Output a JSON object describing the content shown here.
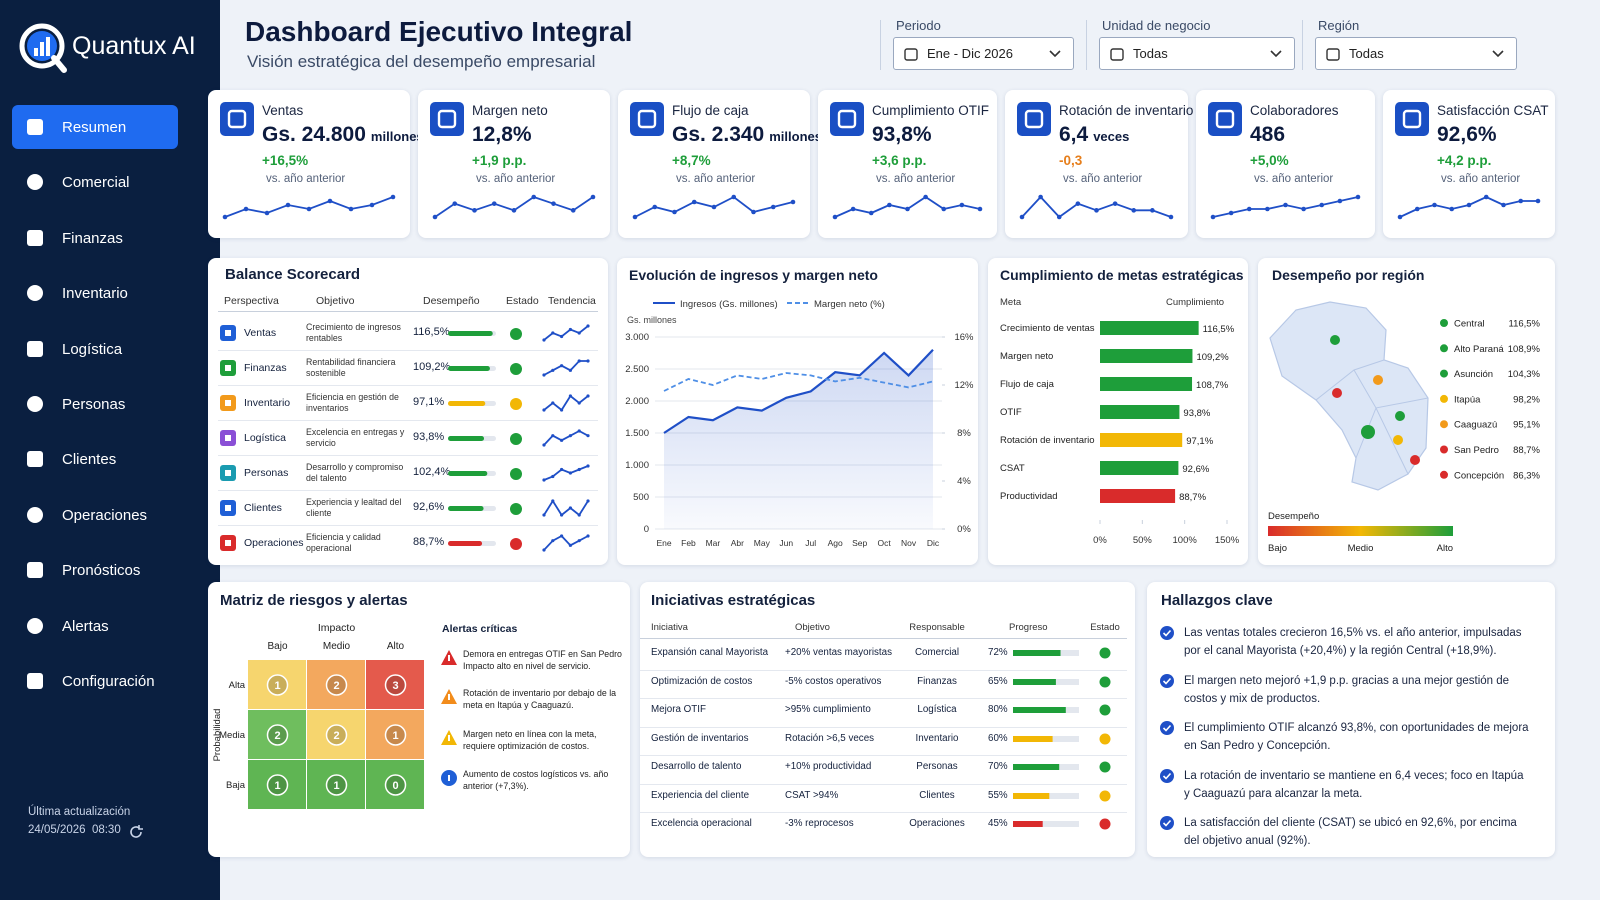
{
  "sidebar": {
    "brand": "Quantux AI",
    "menu": [
      "Resumen",
      "Comercial",
      "Finanzas",
      "Inventario",
      "Logística",
      "Personas",
      "Clientes",
      "Operaciones",
      "Pronósticos",
      "Alertas",
      "Configuración"
    ],
    "last_update_label": "Última actualización",
    "last_update": "24/05/2026  08:30"
  },
  "header": {
    "title": "Dashboard Ejecutivo Integral",
    "subtitle": "Visión estratégica del desempeño empresarial",
    "filters": [
      {
        "label": "Periodo",
        "value": "Ene - Dic 2026"
      },
      {
        "label": "Unidad de negocio",
        "value": "Todas"
      },
      {
        "label": "Región",
        "value": "Todas"
      }
    ]
  },
  "kpis": [
    {
      "name": "Ventas",
      "value": "Gs. 24.800",
      "unit": "millones",
      "change": "+16,5%",
      "change_color": "#1e9e3a",
      "note": "vs. año anterior",
      "spark": [
        2,
        4,
        3,
        5,
        4,
        6,
        4,
        5,
        7
      ]
    },
    {
      "name": "Margen neto",
      "value": "12,8%",
      "change": "+1,9 p.p.",
      "change_color": "#1e9e3a",
      "note": "vs. año anterior",
      "spark": [
        2,
        4,
        3,
        4,
        3,
        5,
        4,
        3,
        5
      ]
    },
    {
      "name": "Flujo de caja",
      "value": "Gs. 2.340",
      "unit": "millones",
      "change": "+8,7%",
      "change_color": "#1e9e3a",
      "note": "vs. año anterior",
      "spark": [
        2,
        4,
        3,
        5,
        4,
        6,
        3,
        4,
        5
      ]
    },
    {
      "name": "Cumplimiento OTIF",
      "value": "93,8%",
      "change": "+3,6 p.p.",
      "change_color": "#1e9e3a",
      "note": "vs. año anterior",
      "spark": [
        1,
        3,
        2,
        4,
        3,
        6,
        3,
        4,
        3
      ]
    },
    {
      "name": "Rotación de inventario",
      "value": "6,4",
      "unit": "veces",
      "change": "-0,3",
      "change_color": "#e67e1b",
      "note": "vs. año anterior",
      "spark": [
        3,
        6,
        3,
        5,
        4,
        5,
        4,
        4,
        3
      ]
    },
    {
      "name": "Colaboradores",
      "value": "486",
      "change": "+5,0%",
      "change_color": "#1e9e3a",
      "note": "vs. año anterior",
      "spark": [
        1,
        2,
        3,
        3,
        4,
        3,
        4,
        5,
        6
      ]
    },
    {
      "name": "Satisfacción CSAT",
      "value": "92,6%",
      "change": "+4,2 p.p.",
      "change_color": "#1e9e3a",
      "note": "vs. año anterior",
      "spark": [
        1,
        3,
        4,
        3,
        4,
        6,
        4,
        5,
        5
      ]
    }
  ],
  "scorecard": {
    "title": "Balance Scorecard",
    "columns": [
      "Perspectiva",
      "Objetivo",
      "Desempeño",
      "Estado",
      "Tendencia"
    ],
    "xlim": [
      0,
      125
    ],
    "rows": [
      {
        "perspective": "Ventas",
        "objective": "Crecimiento de ingresos rentables",
        "value": 116.5,
        "value_label": "116,5%",
        "icon_color": "#1f5fd6",
        "status_color": "#1e9e3a",
        "trend": [
          2,
          4,
          3,
          5,
          4,
          6
        ]
      },
      {
        "perspective": "Finanzas",
        "objective": "Rentabilidad financiera sostenible",
        "value": 109.2,
        "value_label": "109,2%",
        "icon_color": "#1e9e3a",
        "status_color": "#1e9e3a",
        "trend": [
          2,
          3,
          4,
          3,
          5,
          5
        ]
      },
      {
        "perspective": "Inventario",
        "objective": "Eficiencia en gestión de inventarios",
        "value": 97.1,
        "value_label": "97,1%",
        "icon_color": "#f29a1b",
        "status_color": "#f2b705",
        "trend": [
          3,
          4,
          3,
          5,
          4,
          5
        ]
      },
      {
        "perspective": "Logística",
        "objective": "Excelencia en entregas y servicio",
        "value": 93.8,
        "value_label": "93,8%",
        "icon_color": "#8a4fd6",
        "status_color": "#1e9e3a",
        "trend": [
          2,
          4,
          3,
          4,
          5,
          4
        ]
      },
      {
        "perspective": "Personas",
        "objective": "Desarrollo y compromiso del talento",
        "value": 102.4,
        "value_label": "102,4%",
        "icon_color": "#1a9bb0",
        "status_color": "#1e9e3a",
        "trend": [
          2,
          3,
          5,
          4,
          5,
          6
        ]
      },
      {
        "perspective": "Clientes",
        "objective": "Experiencia y lealtad del cliente",
        "value": 92.6,
        "value_label": "92,6%",
        "icon_color": "#1f5fd6",
        "status_color": "#1e9e3a",
        "trend": [
          3,
          5,
          3,
          4,
          3,
          5
        ]
      },
      {
        "perspective": "Operaciones",
        "objective": "Eficiencia y calidad operacional",
        "value": 88.7,
        "value_label": "88,7%",
        "icon_color": "#d92b2b",
        "status_color": "#d92b2b",
        "trend": [
          2,
          4,
          5,
          3,
          4,
          5
        ]
      }
    ]
  },
  "chart_data": [
    {
      "type": "line",
      "title": "Evolución de ingresos y margen neto",
      "y_label": "Gs. millones",
      "categories": [
        "Ene",
        "Feb",
        "Mar",
        "Abr",
        "May",
        "Jun",
        "Jul",
        "Ago",
        "Sep",
        "Oct",
        "Nov",
        "Dic"
      ],
      "series": [
        {
          "name": "Ingresos (Gs. millones)",
          "color": "#1f4fc7",
          "area": true,
          "values": [
            1500,
            1750,
            1700,
            1900,
            1850,
            2050,
            2150,
            2450,
            2400,
            2750,
            2400,
            2800
          ]
        },
        {
          "name": "Margen neto (%)",
          "color": "#4f8fe6",
          "dash": true,
          "axis": "y2",
          "values": [
            11.5,
            12.5,
            12,
            12.8,
            12.5,
            13,
            12.8,
            12.3,
            12.6,
            12.2,
            11.8,
            12.3
          ]
        }
      ],
      "ylim": [
        0,
        3000
      ],
      "yticks": [
        0,
        500,
        {
          "value": 1000,
          "label": "1.000"
        },
        {
          "value": 1500,
          "label": "1.500"
        },
        {
          "value": 2000,
          "label": "2.000"
        },
        {
          "value": 2500,
          "label": "2.500"
        },
        {
          "value": 3000,
          "label": "3.000"
        }
      ],
      "y2lim": [
        0,
        16
      ],
      "y2ticks": [
        {
          "value": 0,
          "label": "0%"
        },
        {
          "value": 4,
          "label": "4%"
        },
        {
          "value": 8,
          "label": "8%"
        },
        {
          "value": 12,
          "label": "12%"
        },
        {
          "value": 16,
          "label": "16%"
        }
      ],
      "grid": true
    },
    {
      "type": "hbar",
      "title": "Cumplimiento de metas estratégicas",
      "headers": [
        "Meta",
        "Cumplimiento"
      ],
      "categories": [
        "Crecimiento de ventas",
        "Margen neto",
        "Flujo de caja",
        "OTIF",
        "Rotación de inventario",
        "CSAT",
        "Productividad"
      ],
      "values": [
        116.5,
        109.2,
        108.7,
        93.8,
        97.1,
        92.6,
        88.7
      ],
      "value_labels": [
        "116,5%",
        "109,2%",
        "108,7%",
        "93,8%",
        "97,1%",
        "92,6%",
        "88,7%"
      ],
      "colors": [
        "#1e9e3a",
        "#1e9e3a",
        "#1e9e3a",
        "#1e9e3a",
        "#f2b705",
        "#1e9e3a",
        "#d92b2b"
      ],
      "xlim": [
        0,
        150
      ],
      "xticks": [
        {
          "value": 0,
          "label": "0%"
        },
        {
          "value": 50,
          "label": "50%"
        },
        {
          "value": 100,
          "label": "100%"
        },
        {
          "value": 150,
          "label": "150%"
        }
      ]
    },
    {
      "type": "map",
      "title": "Desempeño por región",
      "categories": [
        "Central",
        "Alto Paraná",
        "Asunción",
        "Itapúa",
        "Caaguazú",
        "San Pedro",
        "Concepción"
      ],
      "values": [
        116.5,
        108.9,
        104.3,
        98.2,
        95.1,
        88.7,
        86.3
      ],
      "value_labels": [
        "116,5%",
        "108,9%",
        "104,3%",
        "98,2%",
        "95,1%",
        "88,7%",
        "86,3%"
      ],
      "colors": [
        "#1e9e3a",
        "#1e9e3a",
        "#1e9e3a",
        "#f2b705",
        "#f29a1b",
        "#d92b2b",
        "#d92b2b"
      ],
      "scale_title": "Desempeño",
      "scale_labels": [
        "Bajo",
        "Medio",
        "Alto"
      ],
      "scale_colors": [
        "#d92b2b",
        "#f2b705",
        "#1e9e3a"
      ]
    }
  ],
  "risk": {
    "title": "Matriz de riesgos y alertas",
    "x_title": "Impacto",
    "y_title": "Probabilidad",
    "columns": [
      "Bajo",
      "Medio",
      "Alto"
    ],
    "rows": [
      "Alta",
      "Media",
      "Baja"
    ],
    "counts": [
      [
        1,
        2,
        3
      ],
      [
        2,
        2,
        1
      ],
      [
        1,
        1,
        0
      ]
    ],
    "cell_colors": [
      [
        "#f6d56e",
        "#f3a85e",
        "#e45a4c"
      ],
      [
        "#6fbe5e",
        "#f6d56e",
        "#f3a85e"
      ],
      [
        "#5fb553",
        "#5fb553",
        "#5fb553"
      ]
    ],
    "alerts_title": "Alertas críticas",
    "alerts": [
      {
        "text": "Demora en entregas OTIF en San Pedro Impacto alto en nivel de servicio.",
        "icon_color": "#d92b2b"
      },
      {
        "text": "Rotación de inventario por debajo de la meta en Itapúa y Caaguazú.",
        "icon_color": "#f28c1b"
      },
      {
        "text": "Margen neto en línea con la meta, requiere optimización de costos.",
        "icon_color": "#f2b705"
      },
      {
        "text": "Aumento de costos logísticos vs. año anterior (+7,3%).",
        "icon_color": "#1f5fd6"
      }
    ]
  },
  "initiatives": {
    "title": "Iniciativas estratégicas",
    "columns": [
      "Iniciativa",
      "Objetivo",
      "Responsable",
      "Progreso",
      "Estado"
    ],
    "xlim": [
      0,
      100
    ],
    "rows": [
      {
        "name": "Expansión canal Mayorista",
        "objective": "+20% ventas mayoristas",
        "owner": "Comercial",
        "progress": 72,
        "progress_label": "72%",
        "color": "#1e9e3a"
      },
      {
        "name": "Optimización de costos",
        "objective": "-5% costos operativos",
        "owner": "Finanzas",
        "progress": 65,
        "progress_label": "65%",
        "color": "#1e9e3a"
      },
      {
        "name": "Mejora OTIF",
        "objective": ">95% cumplimiento",
        "owner": "Logística",
        "progress": 80,
        "progress_label": "80%",
        "color": "#1e9e3a"
      },
      {
        "name": "Gestión de inventarios",
        "objective": "Rotación >6,5 veces",
        "owner": "Inventario",
        "progress": 60,
        "progress_label": "60%",
        "color": "#f2b705"
      },
      {
        "name": "Desarrollo de talento",
        "objective": "+10% productividad",
        "owner": "Personas",
        "progress": 70,
        "progress_label": "70%",
        "color": "#1e9e3a"
      },
      {
        "name": "Experiencia del cliente",
        "objective": "CSAT >94%",
        "owner": "Clientes",
        "progress": 55,
        "progress_label": "55%",
        "color": "#f2b705"
      },
      {
        "name": "Excelencia operacional",
        "objective": "-3% reprocesos",
        "owner": "Operaciones",
        "progress": 45,
        "progress_label": "45%",
        "color": "#d92b2b"
      }
    ]
  },
  "findings": {
    "title": "Hallazgos clave",
    "items": [
      "Las ventas totales crecieron 16,5% vs. el año anterior, impulsadas por el canal Mayorista (+20,4%) y la región Central (+18,9%).",
      "El margen neto mejoró +1,9 p.p. gracias a una mejor gestión de costos y mix de productos.",
      "El cumplimiento OTIF alcanzó 93,8%, con oportunidades de mejora en San Pedro y Concepción.",
      "La rotación de inventario se mantiene en 6,4 veces; foco en Itapúa y Caaguazú para alcanzar la meta.",
      "La satisfacción del cliente (CSAT) se ubicó en 92,6%, por encima del objetivo anual (92%)."
    ]
  }
}
